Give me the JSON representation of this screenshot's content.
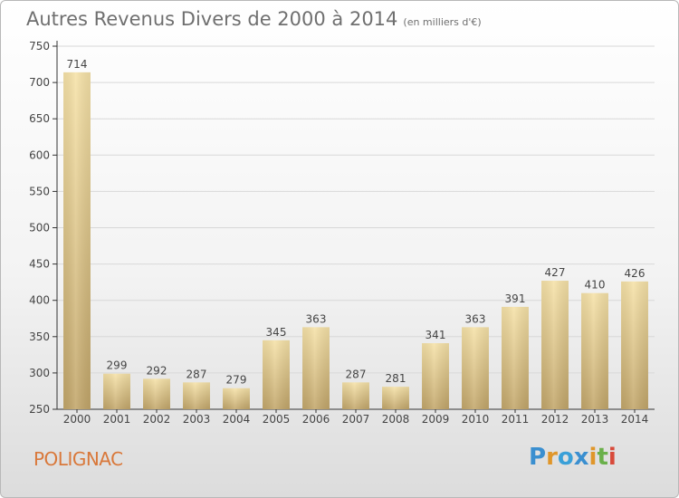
{
  "title": "Autres Revenus Divers de 2000 à 2014",
  "subtitle": "(en milliers d'€)",
  "commune": "POLIGNAC",
  "logo": {
    "letters": [
      "P",
      "r",
      "o",
      "x",
      "i",
      "t",
      "i"
    ],
    "colors": [
      "#3a8fd0",
      "#e0962a",
      "#3aa0d8",
      "#3a8fd0",
      "#e0962a",
      "#6ab04a",
      "#d84a3a"
    ]
  },
  "colors": {
    "bar_top": "#f6e2a8",
    "bar_bottom": "#c2a66a",
    "axis": "#333333",
    "grid": "#d8d8d8",
    "text": "#444444"
  },
  "chart_data": {
    "type": "bar",
    "categories": [
      "2000",
      "2001",
      "2002",
      "2003",
      "2004",
      "2005",
      "2006",
      "2007",
      "2008",
      "2009",
      "2010",
      "2011",
      "2012",
      "2013",
      "2014"
    ],
    "values": [
      714,
      299,
      292,
      287,
      279,
      345,
      363,
      287,
      281,
      341,
      363,
      391,
      427,
      410,
      426
    ],
    "ylim": [
      250,
      750
    ],
    "yticks": [
      250,
      300,
      350,
      400,
      450,
      500,
      550,
      600,
      650,
      700,
      750
    ],
    "grid": true,
    "xlabel": "",
    "ylabel": ""
  }
}
